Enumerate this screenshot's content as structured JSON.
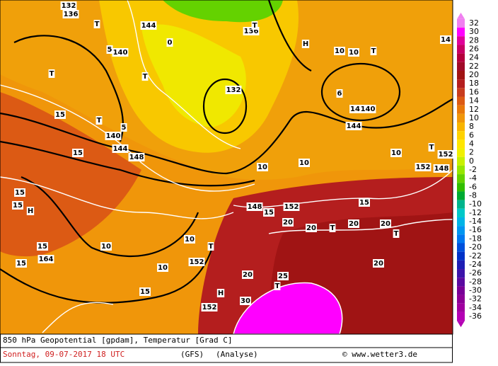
{
  "map": {
    "labels": [
      "132",
      "136",
      "T",
      "144",
      "140",
      "5",
      "0",
      "136",
      "T",
      "H",
      "10",
      "10",
      "T",
      "14",
      "T",
      "15",
      "140",
      "T",
      "5",
      "144",
      "148",
      "T",
      "15",
      "6",
      "14",
      "140",
      "144",
      "15",
      "H",
      "15",
      "15",
      "164",
      "15",
      "10",
      "10",
      "10",
      "15",
      "152",
      "T",
      "H",
      "152",
      "30",
      "T",
      "25",
      "20",
      "20",
      "20",
      "T",
      "20",
      "20",
      "T",
      "20",
      "15",
      "15",
      "148",
      "152",
      "10",
      "10",
      "10",
      "152",
      "148",
      "152",
      "T",
      "132"
    ],
    "footer": {
      "title": "850 hPa Geopotential [gpdam], Temperatur [Grad C]",
      "date": "Sonntag, 09-07-2017  18 UTC",
      "model": "(GFS)",
      "run": "(Analyse)",
      "credit": "© www.wetter3.de"
    },
    "colorbar": {
      "ticks": [
        32,
        30,
        28,
        26,
        24,
        22,
        20,
        18,
        16,
        14,
        12,
        10,
        8,
        6,
        4,
        2,
        0,
        -2,
        -4,
        -6,
        -8,
        -10,
        -12,
        -14,
        -16,
        -18,
        -20,
        -22,
        -24,
        -26,
        -28,
        -30,
        -32,
        -34,
        -36
      ],
      "colors": [
        "#f080f0",
        "#ff00ff",
        "#e0009a",
        "#c80064",
        "#b4003c",
        "#a00a28",
        "#a01414",
        "#b41e1e",
        "#c83c1e",
        "#dc5a14",
        "#e8780a",
        "#f0960a",
        "#f8b400",
        "#ffd200",
        "#ffe600",
        "#f0f000",
        "#c8f000",
        "#96e600",
        "#64d200",
        "#32be00",
        "#00aa32",
        "#00b48c",
        "#00c8c8",
        "#00b4e6",
        "#0096f0",
        "#0078f0",
        "#0050dc",
        "#0032c8",
        "#1e1eb4",
        "#3c14aa",
        "#5a0aa0",
        "#780096",
        "#8c0096",
        "#a000a0",
        "#b400b4"
      ]
    }
  }
}
